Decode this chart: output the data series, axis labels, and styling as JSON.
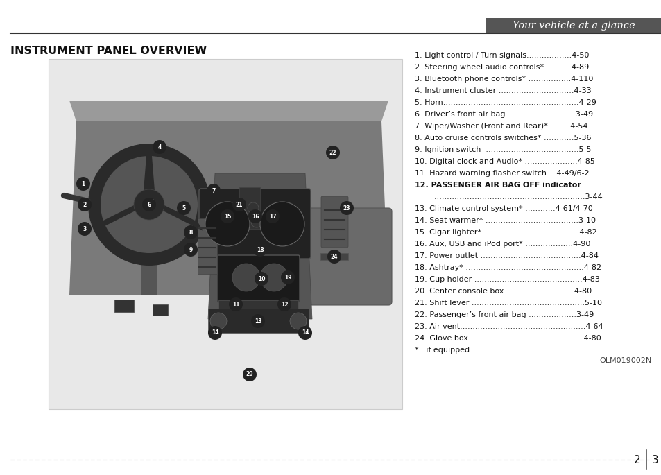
{
  "page_bg": "#ffffff",
  "header_text": "Your vehicle at a glance",
  "header_bar_color": "#555555",
  "header_line_color": "#333333",
  "section_title": "INSTRUMENT PANEL OVERVIEW",
  "items": [
    "1. Light control / Turn signals..................4-50",
    "2. Steering wheel audio controls* ..........4-89",
    "3. Bluetooth phone controls* .................4-110",
    "4. Instrument cluster ..............................4-33",
    "5. Horn......................................................4-29",
    "6. Driver’s front air bag ...........................3-49",
    "7. Wiper/Washer (Front and Rear)* ........4-54",
    "8. Auto cruise controls switches* ............5-36",
    "9. Ignition switch  .....................................5-5",
    "10. Digital clock and Audio* .....................4-85",
    "11. Hazard warning flasher switch ...4-49/6-2",
    "12. PASSENGER AIR BAG OFF indicator",
    "        ............................................................3-44",
    "13. Climate control system* ............4-61/4-70",
    "14. Seat warmer* .....................................3-10",
    "15. Cigar lighter* ......................................4-82",
    "16. Aux, USB and iPod port* ...................4-90",
    "17. Power outlet ........................................4-84",
    "18. Ashtray* ...............................................4-82",
    "19. Cup holder ...........................................4-83",
    "20. Center console box............................4-80",
    "21. Shift lever .............................................5-10",
    "22. Passenger’s front air bag ...................3-49",
    "23. Air vent..................................................4-64",
    "24. Glove box .............................................4-80",
    "* : if equipped"
  ],
  "footnote": "OLM019002N",
  "footer_line_color": "#aaaaaa",
  "page_num_left": "2",
  "page_num_right": "3",
  "page_num_separator_color": "#555555",
  "img_bg": "#e8e8e8",
  "dash_color": "#888888",
  "dash_dark": "#444444",
  "dash_mid": "#666666",
  "dash_light": "#aaaaaa"
}
